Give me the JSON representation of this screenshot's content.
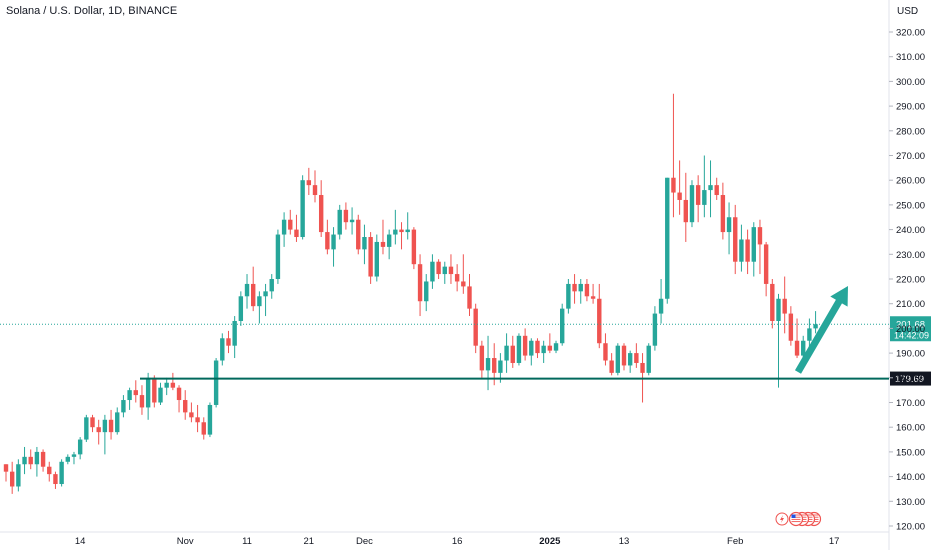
{
  "chart_data": {
    "type": "candlestick",
    "title": "Solana / U.S. Dollar, 1D, BINANCE",
    "currency": "USD",
    "y_axis": {
      "ticks": [
        120,
        130,
        140,
        150,
        160,
        170,
        180,
        190,
        200,
        210,
        220,
        230,
        240,
        250,
        260,
        270,
        280,
        290,
        300,
        310,
        320
      ],
      "range": [
        120,
        320
      ]
    },
    "x_axis": {
      "tick_labels": [
        "14",
        "Nov",
        "11",
        "21",
        "Dec",
        "16",
        "2025",
        "13",
        "Feb",
        "17"
      ]
    },
    "price_marker": {
      "price": "201.68",
      "countdown": "14:42:09",
      "color": "#26a69a"
    },
    "support_line": {
      "price": "179.69",
      "color": "#00695c"
    },
    "arrow": {
      "direction": "up",
      "color": "#26a69a"
    },
    "colors": {
      "up": "#26a69a",
      "down": "#ef5350"
    },
    "candles": [
      [
        145,
        145,
        138,
        142
      ],
      [
        142,
        146,
        133,
        136
      ],
      [
        136,
        147,
        134,
        145
      ],
      [
        145,
        152,
        141,
        148
      ],
      [
        148,
        151,
        143,
        145
      ],
      [
        145,
        152,
        140,
        150
      ],
      [
        150,
        151,
        142,
        144
      ],
      [
        144,
        146,
        138,
        141
      ],
      [
        141,
        142,
        135,
        137
      ],
      [
        137,
        147,
        136,
        146
      ],
      [
        146,
        149,
        145,
        148
      ],
      [
        148,
        150,
        145,
        149
      ],
      [
        149,
        156,
        147,
        155
      ],
      [
        155,
        165,
        154,
        164
      ],
      [
        164,
        165,
        158,
        160
      ],
      [
        160,
        163,
        153,
        158
      ],
      [
        158,
        165,
        149,
        163
      ],
      [
        163,
        167,
        155,
        158
      ],
      [
        158,
        168,
        157,
        166
      ],
      [
        166,
        173,
        164,
        171
      ],
      [
        171,
        176,
        167,
        175
      ],
      [
        175,
        179,
        170,
        173
      ],
      [
        173,
        177,
        165,
        168
      ],
      [
        168,
        182,
        163,
        180
      ],
      [
        180,
        181,
        168,
        170
      ],
      [
        170,
        178,
        169,
        176
      ],
      [
        176,
        180,
        173,
        178
      ],
      [
        178,
        182,
        175,
        176
      ],
      [
        176,
        177,
        166,
        171
      ],
      [
        171,
        175,
        163,
        166
      ],
      [
        166,
        170,
        162,
        164
      ],
      [
        164,
        169,
        158,
        162
      ],
      [
        162,
        164,
        155,
        157
      ],
      [
        157,
        170,
        156,
        169
      ],
      [
        169,
        188,
        168,
        187
      ],
      [
        187,
        198,
        185,
        196
      ],
      [
        196,
        199,
        190,
        193
      ],
      [
        193,
        205,
        188,
        203
      ],
      [
        203,
        215,
        201,
        213
      ],
      [
        213,
        222,
        208,
        218
      ],
      [
        218,
        225,
        207,
        209
      ],
      [
        209,
        215,
        202,
        213
      ],
      [
        213,
        218,
        205,
        215
      ],
      [
        215,
        222,
        212,
        220
      ],
      [
        220,
        240,
        218,
        238
      ],
      [
        238,
        247,
        233,
        244
      ],
      [
        244,
        248,
        238,
        240
      ],
      [
        240,
        246,
        235,
        237
      ],
      [
        237,
        262,
        236,
        260
      ],
      [
        260,
        265,
        254,
        258
      ],
      [
        258,
        264,
        251,
        254
      ],
      [
        254,
        260,
        237,
        239
      ],
      [
        239,
        244,
        230,
        232
      ],
      [
        232,
        241,
        225,
        238
      ],
      [
        238,
        250,
        236,
        248
      ],
      [
        248,
        251,
        240,
        243
      ],
      [
        243,
        249,
        238,
        244
      ],
      [
        244,
        246,
        230,
        232
      ],
      [
        232,
        242,
        226,
        237
      ],
      [
        237,
        239,
        218,
        221
      ],
      [
        221,
        238,
        219,
        235
      ],
      [
        235,
        244,
        230,
        233
      ],
      [
        233,
        240,
        228,
        238
      ],
      [
        238,
        248,
        234,
        240
      ],
      [
        240,
        243,
        232,
        239
      ],
      [
        239,
        247,
        236,
        240
      ],
      [
        240,
        241,
        224,
        226
      ],
      [
        226,
        230,
        205,
        211
      ],
      [
        211,
        222,
        207,
        219
      ],
      [
        219,
        230,
        216,
        227
      ],
      [
        227,
        228,
        220,
        222
      ],
      [
        222,
        227,
        218,
        225
      ],
      [
        225,
        230,
        218,
        222
      ],
      [
        222,
        226,
        215,
        219
      ],
      [
        219,
        230,
        214,
        217
      ],
      [
        217,
        222,
        205,
        208
      ],
      [
        208,
        210,
        190,
        193
      ],
      [
        193,
        195,
        180,
        183
      ],
      [
        183,
        197,
        175,
        188
      ],
      [
        188,
        194,
        177,
        182
      ],
      [
        182,
        190,
        178,
        187
      ],
      [
        187,
        198,
        182,
        193
      ],
      [
        193,
        197,
        184,
        186
      ],
      [
        186,
        198,
        185,
        197
      ],
      [
        197,
        200,
        187,
        189
      ],
      [
        189,
        196,
        185,
        195
      ],
      [
        195,
        196,
        188,
        190
      ],
      [
        190,
        195,
        186,
        193
      ],
      [
        193,
        198,
        190,
        191
      ],
      [
        191,
        195,
        190,
        194
      ],
      [
        194,
        210,
        193,
        208
      ],
      [
        208,
        220,
        206,
        218
      ],
      [
        218,
        222,
        210,
        215
      ],
      [
        215,
        220,
        210,
        218
      ],
      [
        218,
        220,
        211,
        213
      ],
      [
        213,
        218,
        210,
        212
      ],
      [
        212,
        218,
        192,
        194
      ],
      [
        194,
        198,
        185,
        187
      ],
      [
        187,
        190,
        181,
        182
      ],
      [
        182,
        194,
        181,
        193
      ],
      [
        193,
        194,
        183,
        185
      ],
      [
        185,
        191,
        182,
        190
      ],
      [
        190,
        194,
        184,
        186
      ],
      [
        186,
        190,
        170,
        182
      ],
      [
        182,
        194,
        181,
        193
      ],
      [
        193,
        209,
        191,
        206
      ],
      [
        206,
        220,
        202,
        212
      ],
      [
        212,
        261,
        210,
        261
      ],
      [
        261,
        295,
        245,
        255
      ],
      [
        255,
        268,
        246,
        252
      ],
      [
        252,
        263,
        235,
        243
      ],
      [
        243,
        260,
        241,
        258
      ],
      [
        258,
        262,
        243,
        250
      ],
      [
        250,
        270,
        245,
        256
      ],
      [
        256,
        268,
        245,
        258
      ],
      [
        258,
        261,
        252,
        254
      ],
      [
        254,
        259,
        236,
        239
      ],
      [
        239,
        251,
        230,
        245
      ],
      [
        245,
        250,
        222,
        227
      ],
      [
        227,
        242,
        223,
        236
      ],
      [
        236,
        240,
        222,
        227
      ],
      [
        227,
        243,
        221,
        241
      ],
      [
        241,
        244,
        222,
        234
      ],
      [
        234,
        235,
        213,
        218
      ],
      [
        218,
        220,
        200,
        203
      ],
      [
        203,
        214,
        176,
        212
      ],
      [
        212,
        221,
        198,
        206
      ],
      [
        206,
        209,
        193,
        195
      ],
      [
        195,
        204,
        188,
        189
      ],
      [
        189,
        197,
        188,
        195
      ],
      [
        195,
        204,
        190,
        200
      ],
      [
        200,
        207,
        198,
        201.68
      ]
    ]
  },
  "overlay_labels": {
    "flag_icon": "us-flag-icon",
    "lightning_icon": "lightning-icon"
  }
}
